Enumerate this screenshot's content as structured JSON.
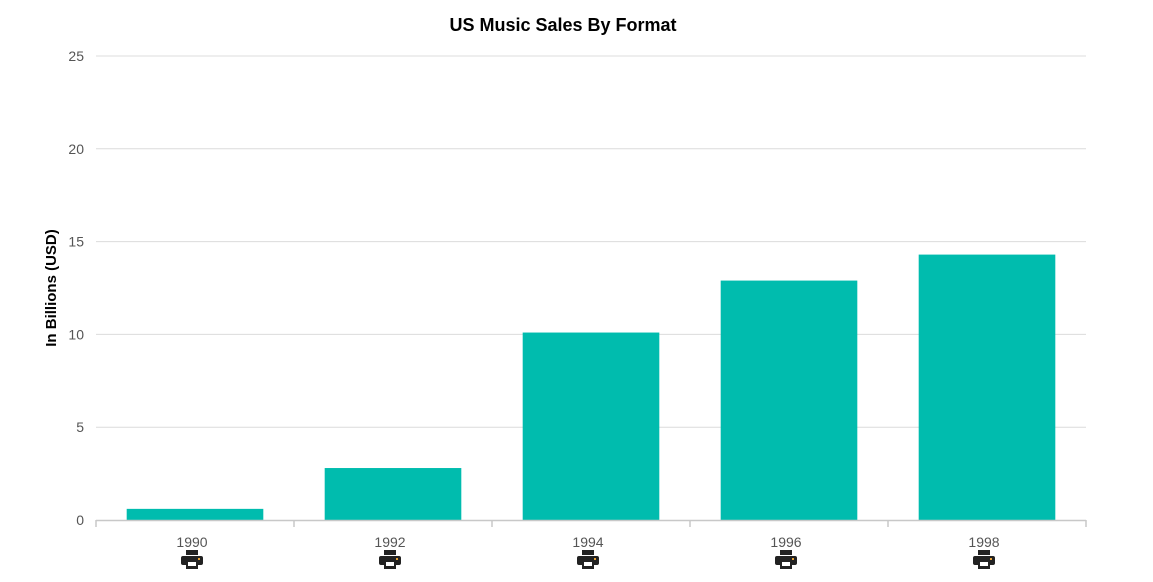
{
  "chart_data": {
    "type": "bar",
    "title": "US Music Sales By Format",
    "xlabel": "",
    "ylabel": "In Billions (USD)",
    "categories": [
      "1990",
      "1992",
      "1994",
      "1996",
      "1998"
    ],
    "values": [
      0.6,
      2.8,
      10.1,
      12.9,
      14.3
    ],
    "ylim": [
      0,
      25
    ],
    "yticks": [
      0,
      5,
      10,
      15,
      20,
      25
    ],
    "grid": true,
    "bar_color": "#00bcae",
    "category_icon": "printer-icon"
  }
}
